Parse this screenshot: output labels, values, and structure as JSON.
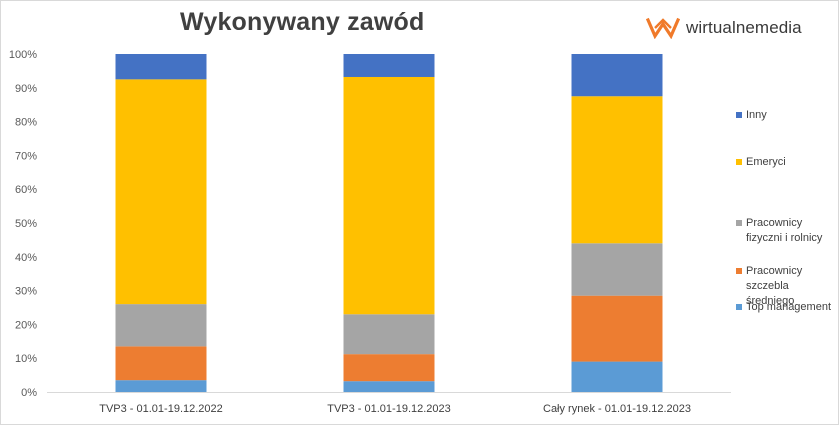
{
  "logo": {
    "text": "wirtualnemedia",
    "icon": "wm-logo-icon",
    "color": "#f07a2a"
  },
  "chart_data": {
    "type": "bar",
    "stacked": true,
    "percent": true,
    "title": "Wykonywany zawód",
    "categories": [
      "TVP3 - 01.01-19.12.2022",
      "TVP3 - 01.01-19.12.2023",
      "Cały rynek - 01.01-19.12.2023"
    ],
    "ylim": [
      0,
      100
    ],
    "yticks": [
      "0%",
      "10%",
      "20%",
      "30%",
      "40%",
      "50%",
      "60%",
      "70%",
      "80%",
      "90%",
      "100%"
    ],
    "grid": false,
    "legend_position": "right",
    "series": [
      {
        "name": "Top management",
        "color": "#5b9bd5",
        "values": [
          3.5,
          3.2,
          9.0
        ]
      },
      {
        "name": "Pracownicy szczebla średniego",
        "color": "#ed7d31",
        "values": [
          10.0,
          8.0,
          19.5
        ]
      },
      {
        "name": "Pracownicy fizyczni i rolnicy",
        "color": "#a5a5a5",
        "values": [
          12.5,
          11.8,
          15.5
        ]
      },
      {
        "name": "Emeryci",
        "color": "#ffc000",
        "values": [
          66.5,
          70.2,
          43.5
        ]
      },
      {
        "name": "Inny",
        "color": "#4472c4",
        "values": [
          7.5,
          6.8,
          12.5
        ]
      }
    ],
    "legend_order": [
      {
        "lines": [
          "Inny"
        ]
      },
      {
        "lines": [
          "Emeryci"
        ]
      },
      {
        "lines": [
          "Pracownicy",
          "fizyczni i rolnicy"
        ]
      },
      {
        "lines": [
          "Pracownicy",
          "szczebla",
          "średniego"
        ]
      },
      {
        "lines": [
          "Top management"
        ]
      }
    ]
  }
}
